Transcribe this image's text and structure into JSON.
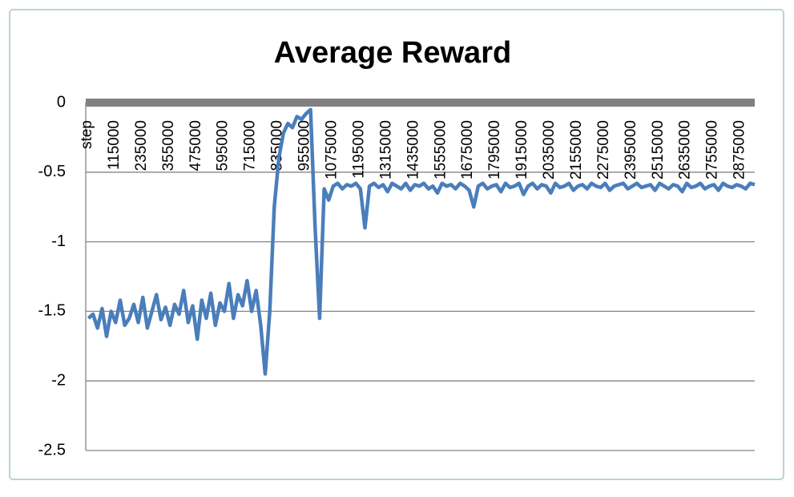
{
  "chart_data": {
    "type": "line",
    "title": "Average Reward",
    "x": [
      0,
      20000,
      40000,
      60000,
      80000,
      100000,
      120000,
      140000,
      160000,
      180000,
      200000,
      220000,
      240000,
      260000,
      280000,
      300000,
      320000,
      340000,
      360000,
      380000,
      400000,
      420000,
      440000,
      460000,
      480000,
      500000,
      520000,
      540000,
      560000,
      580000,
      600000,
      620000,
      640000,
      660000,
      680000,
      700000,
      720000,
      740000,
      760000,
      780000,
      800000,
      820000,
      840000,
      860000,
      880000,
      900000,
      920000,
      940000,
      960000,
      980000,
      1000000,
      1020000,
      1040000,
      1060000,
      1080000,
      1100000,
      1120000,
      1140000,
      1160000,
      1180000,
      1200000,
      1220000,
      1240000,
      1260000,
      1280000,
      1300000,
      1320000,
      1340000,
      1360000,
      1380000,
      1400000,
      1420000,
      1440000,
      1460000,
      1480000,
      1500000,
      1520000,
      1540000,
      1560000,
      1580000,
      1600000,
      1620000,
      1640000,
      1660000,
      1680000,
      1700000,
      1720000,
      1740000,
      1760000,
      1780000,
      1800000,
      1820000,
      1840000,
      1860000,
      1880000,
      1900000,
      1920000,
      1940000,
      1960000,
      1980000,
      2000000,
      2020000,
      2040000,
      2060000,
      2080000,
      2100000,
      2120000,
      2140000,
      2160000,
      2180000,
      2200000,
      2220000,
      2240000,
      2260000,
      2280000,
      2300000,
      2320000,
      2340000,
      2360000,
      2380000,
      2400000,
      2420000,
      2440000,
      2460000,
      2480000,
      2500000,
      2520000,
      2540000,
      2560000,
      2580000,
      2600000,
      2620000,
      2640000,
      2660000,
      2680000,
      2700000,
      2720000,
      2740000,
      2760000,
      2780000,
      2800000,
      2820000,
      2840000,
      2860000,
      2880000,
      2900000,
      2920000,
      2940000
    ],
    "series": [
      {
        "name": "Average Reward",
        "color": "#4a7ebb",
        "values": [
          -1.55,
          -1.52,
          -1.62,
          -1.48,
          -1.68,
          -1.5,
          -1.58,
          -1.42,
          -1.6,
          -1.55,
          -1.45,
          -1.58,
          -1.4,
          -1.62,
          -1.5,
          -1.38,
          -1.56,
          -1.47,
          -1.6,
          -1.45,
          -1.52,
          -1.35,
          -1.58,
          -1.46,
          -1.7,
          -1.42,
          -1.55,
          -1.37,
          -1.6,
          -1.44,
          -1.5,
          -1.3,
          -1.55,
          -1.38,
          -1.46,
          -1.28,
          -1.5,
          -1.35,
          -1.6,
          -1.95,
          -1.5,
          -0.75,
          -0.4,
          -0.22,
          -0.15,
          -0.18,
          -0.1,
          -0.12,
          -0.08,
          -0.05,
          -0.9,
          -1.55,
          -0.62,
          -0.7,
          -0.6,
          -0.58,
          -0.62,
          -0.59,
          -0.6,
          -0.58,
          -0.62,
          -0.9,
          -0.6,
          -0.58,
          -0.61,
          -0.59,
          -0.64,
          -0.58,
          -0.6,
          -0.62,
          -0.58,
          -0.63,
          -0.59,
          -0.6,
          -0.58,
          -0.62,
          -0.6,
          -0.65,
          -0.58,
          -0.6,
          -0.59,
          -0.62,
          -0.58,
          -0.6,
          -0.63,
          -0.75,
          -0.6,
          -0.58,
          -0.62,
          -0.6,
          -0.59,
          -0.64,
          -0.58,
          -0.61,
          -0.6,
          -0.58,
          -0.66,
          -0.6,
          -0.58,
          -0.62,
          -0.59,
          -0.6,
          -0.65,
          -0.58,
          -0.61,
          -0.6,
          -0.58,
          -0.63,
          -0.6,
          -0.59,
          -0.62,
          -0.58,
          -0.6,
          -0.61,
          -0.58,
          -0.63,
          -0.6,
          -0.59,
          -0.58,
          -0.62,
          -0.6,
          -0.58,
          -0.61,
          -0.6,
          -0.59,
          -0.63,
          -0.58,
          -0.6,
          -0.62,
          -0.59,
          -0.6,
          -0.64,
          -0.58,
          -0.61,
          -0.6,
          -0.58,
          -0.62,
          -0.6,
          -0.59,
          -0.63,
          -0.58,
          -0.6,
          -0.61,
          -0.59,
          -0.6,
          -0.62,
          -0.58,
          -0.59
        ]
      }
    ],
    "xlim": [
      -12000,
      2940000
    ],
    "xticks": [
      {
        "value": -5000,
        "label": "step"
      },
      115000,
      235000,
      355000,
      475000,
      595000,
      715000,
      835000,
      955000,
      1075000,
      1195000,
      1315000,
      1435000,
      1555000,
      1675000,
      1795000,
      1915000,
      2035000,
      2155000,
      2275000,
      2395000,
      2515000,
      2635000,
      2755000,
      2875000
    ],
    "ylim": [
      -2.5,
      0
    ],
    "yticks": [
      0,
      -0.5,
      -1,
      -1.5,
      -2,
      -2.5
    ],
    "grid": true
  }
}
